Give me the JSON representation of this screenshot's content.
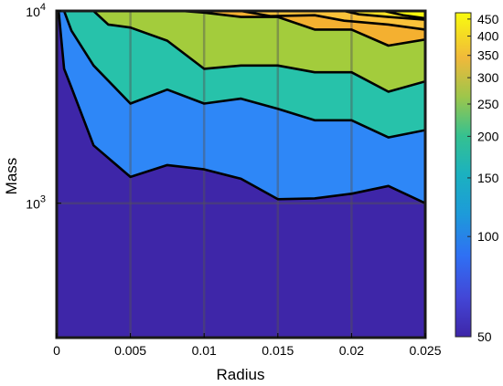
{
  "chart_data": {
    "type": "contourf",
    "xlabel": "Radius",
    "ylabel": "Mass",
    "xlim": [
      0,
      0.025
    ],
    "ylim": [
      200,
      10000
    ],
    "yscale": "log",
    "grid": true,
    "x_ticks": [
      0,
      0.005,
      0.01,
      0.015,
      0.02,
      0.025
    ],
    "x_tick_labels": [
      "0",
      "0.005",
      "0.01",
      "0.015",
      "0.02",
      "0.025"
    ],
    "y_ticks": [
      1000,
      10000
    ],
    "y_tick_bases": [
      "10",
      "10"
    ],
    "y_tick_exponents": [
      "3",
      "4"
    ],
    "colorbar": {
      "range": [
        50,
        470
      ],
      "ticks": [
        50,
        100,
        150,
        200,
        250,
        300,
        350,
        400,
        450
      ],
      "tick_labels": [
        "50",
        "100",
        "150",
        "200",
        "250",
        "300",
        "350",
        "400",
        "450"
      ],
      "scale": "log",
      "colormap": "parula"
    },
    "level_colors": [
      "#3e26a8",
      "#2e87f7",
      "#27c2aa",
      "#a3cc3c",
      "#f4b030",
      "#f9fb0e"
    ],
    "contour_levels": [
      {
        "level": 1,
        "points": [
          [
            0.00013,
            10000
          ],
          [
            0.0005,
            5000
          ],
          [
            0.001,
            4000
          ],
          [
            0.0025,
            2000
          ],
          [
            0.005,
            1370
          ],
          [
            0.0075,
            1580
          ],
          [
            0.01,
            1500
          ],
          [
            0.0125,
            1340
          ],
          [
            0.015,
            1050
          ],
          [
            0.0175,
            1060
          ],
          [
            0.02,
            1120
          ],
          [
            0.0225,
            1230
          ],
          [
            0.025,
            1000
          ]
        ]
      },
      {
        "level": 2,
        "points": [
          [
            0.0005,
            10000
          ],
          [
            0.001,
            7900
          ],
          [
            0.0025,
            5200
          ],
          [
            0.005,
            3300
          ],
          [
            0.0075,
            3900
          ],
          [
            0.01,
            3300
          ],
          [
            0.0125,
            3500
          ],
          [
            0.015,
            3100
          ],
          [
            0.0175,
            2700
          ],
          [
            0.02,
            2700
          ],
          [
            0.0225,
            2200
          ],
          [
            0.025,
            2400
          ]
        ]
      },
      {
        "level": 3,
        "points": [
          [
            0.0025,
            10000
          ],
          [
            0.0035,
            8500
          ],
          [
            0.005,
            8200
          ],
          [
            0.0075,
            7000
          ],
          [
            0.01,
            5000
          ],
          [
            0.0125,
            5200
          ],
          [
            0.015,
            5200
          ],
          [
            0.0175,
            4800
          ],
          [
            0.02,
            4800
          ],
          [
            0.0225,
            3800
          ],
          [
            0.025,
            4300
          ]
        ]
      },
      {
        "level": 4,
        "points": [
          [
            0.0085,
            10000
          ],
          [
            0.01,
            9800
          ],
          [
            0.0125,
            9300
          ],
          [
            0.015,
            9300
          ],
          [
            0.0175,
            8000
          ],
          [
            0.02,
            8000
          ],
          [
            0.0225,
            6600
          ],
          [
            0.025,
            7100
          ]
        ]
      },
      {
        "level": 5,
        "points": [
          [
            0.0125,
            10000
          ],
          [
            0.0145,
            9400
          ],
          [
            0.0175,
            9500
          ],
          [
            0.0195,
            8900
          ],
          [
            0.0225,
            8500
          ],
          [
            0.025,
            8000
          ]
        ]
      },
      {
        "level": 6,
        "points": [
          [
            0.0195,
            10000
          ],
          [
            0.0205,
            9600
          ],
          [
            0.0225,
            9300
          ],
          [
            0.025,
            9000
          ]
        ]
      },
      {
        "level": 7,
        "points": [
          [
            0.0222,
            10000
          ],
          [
            0.0235,
            9500
          ],
          [
            0.025,
            9150
          ]
        ]
      }
    ],
    "filled_bands": [
      {
        "color": "#3e26a8",
        "upper": "top"
      },
      {
        "color": "#2e87f7",
        "upper": 1
      },
      {
        "color": "#27c2aa",
        "upper": 2
      },
      {
        "color": "#a3cc3c",
        "upper": 3
      },
      {
        "color": "#f4b030",
        "upper": 4
      },
      {
        "color": "#fac23a",
        "upper": 5
      },
      {
        "color": "#f7e024",
        "upper": 6
      },
      {
        "color": "#f9fb0e",
        "upper": 7
      }
    ]
  }
}
